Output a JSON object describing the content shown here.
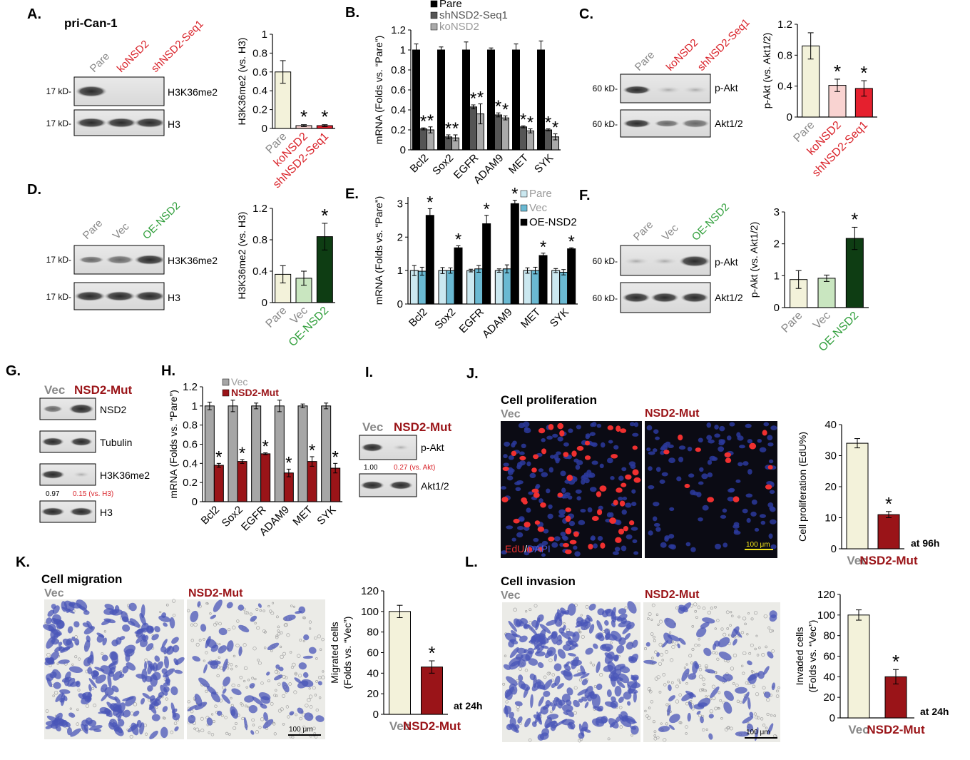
{
  "colors": {
    "pare_fill": "#f3f2da",
    "ko_fill": "#f9d3d1",
    "sh_fill": "#e5202e",
    "vec_fill": "#c9e6c0",
    "oe_fill": "#0e3d13",
    "mut_fill": "#9a1418",
    "red_text": "#d9232a",
    "green_text": "#2f9e3a",
    "gray_text": "#888888",
    "darkred_text": "#9a1418",
    "mrna_pare": "#000000",
    "mrna_sh": "#555555",
    "mrna_ko": "#aaaaaa",
    "mrnaE_pare": "#cbe8f0",
    "mrnaE_vec": "#6ab9d2",
    "mrnaE_oe": "#000000",
    "mrnaH_vec": "#a6a6a6",
    "mrnaH_mut": "#9a1418",
    "edu_bg": "#0b0b14",
    "transwell_bg": "#ebebe7",
    "cell_blue": "#4a55b8"
  },
  "panels": {
    "A": {
      "letter": "A.",
      "subtitle": "pri-Can-1",
      "lanes": [
        "Pare",
        "koNSD2",
        "shNSD2-Seq1"
      ],
      "blots": [
        {
          "mw": "17 kD-",
          "label": "H3K36me2"
        },
        {
          "mw": "17 kD-",
          "label": "H3"
        }
      ]
    },
    "B": {
      "letter": "B."
    },
    "C": {
      "letter": "C.",
      "lanes": [
        "Pare",
        "koNSD2",
        "shNSD2-Seq1"
      ],
      "blots": [
        {
          "mw": "60 kD-",
          "label": "p-Akt"
        },
        {
          "mw": "60 kD-",
          "label": "Akt1/2"
        }
      ]
    },
    "D": {
      "letter": "D.",
      "lanes": [
        "Pare",
        "Vec",
        "OE-NSD2"
      ],
      "blots": [
        {
          "mw": "17 kD-",
          "label": "H3K36me2"
        },
        {
          "mw": "17 kD-",
          "label": "H3"
        }
      ]
    },
    "E": {
      "letter": "E."
    },
    "F": {
      "letter": "F.",
      "lanes": [
        "Pare",
        "Vec",
        "OE-NSD2"
      ],
      "blots": [
        {
          "mw": "60 kD-",
          "label": "p-Akt"
        },
        {
          "mw": "60 kD-",
          "label": "Akt1/2"
        }
      ]
    },
    "G": {
      "letter": "G.",
      "lanes": [
        "Vec",
        "NSD2-Mut"
      ],
      "blots": [
        {
          "label": "NSD2"
        },
        {
          "label": "Tubulin"
        },
        {
          "label": "H3K36me2"
        },
        {
          "label": "H3"
        }
      ],
      "quant_left": "0.97",
      "quant_right": "0.15 (vs. H3)"
    },
    "H": {
      "letter": "H."
    },
    "I": {
      "letter": "I.",
      "lanes": [
        "Vec",
        "NSD2-Mut"
      ],
      "blots": [
        {
          "label": "p-Akt"
        },
        {
          "label": "Akt1/2"
        }
      ],
      "quant_left": "1.00",
      "quant_right": "0.27 (vs. Akt)"
    },
    "J": {
      "letter": "J.",
      "title": "Cell proliferation",
      "left_label": "Vec",
      "right_label": "NSD2-Mut",
      "stain_edu": "EdU",
      "stain_sep": "/",
      "stain_dapi": "DAPI",
      "scale": "100 μm",
      "time": "at 96h"
    },
    "K": {
      "letter": "K.",
      "title": "Cell migration",
      "left_label": "Vec",
      "right_label": "NSD2-Mut",
      "scale": "100 μm",
      "time": "at 24h"
    },
    "L": {
      "letter": "L.",
      "title": "Cell invasion",
      "left_label": "Vec",
      "right_label": "NSD2-Mut",
      "scale": "100 μm",
      "time": "at 24h"
    }
  },
  "chart_data": [
    {
      "id": "A_bar",
      "type": "bar",
      "categories": [
        "Pare",
        "koNSD2",
        "shNSD2-Seq1"
      ],
      "values": [
        0.6,
        0.03,
        0.03
      ],
      "errors": [
        0.12,
        0.01,
        0.01
      ],
      "sig": [
        false,
        true,
        true
      ],
      "ylabel": "H3K36me2 (vs. H3)",
      "ylim": [
        0,
        1
      ],
      "yticks": [
        "0",
        "0.2",
        "0.4",
        "0.6",
        "0.8",
        "1"
      ],
      "tickvals": [
        0,
        0.2,
        0.4,
        0.6,
        0.8,
        1
      ],
      "fills": [
        "#f3f2da",
        "#f9d3d1",
        "#e5202e"
      ],
      "catcolors": [
        "#888888",
        "#d9232a",
        "#d9232a"
      ]
    },
    {
      "id": "B_grouped",
      "type": "bar",
      "categories": [
        "Bcl2",
        "Sox2",
        "EGFR",
        "ADAM9",
        "MET",
        "SYK"
      ],
      "series": [
        {
          "name": "Pare",
          "values": [
            1,
            1,
            1,
            1,
            1,
            1
          ],
          "errors": [
            0.06,
            0.03,
            0.08,
            0.02,
            0.06,
            0.09
          ]
        },
        {
          "name": "shNSD2-Seq1",
          "values": [
            0.21,
            0.13,
            0.43,
            0.35,
            0.23,
            0.2
          ],
          "errors": [
            0.01,
            0.02,
            0.02,
            0.02,
            0.01,
            0.01
          ]
        },
        {
          "name": "koNSD2",
          "values": [
            0.2,
            0.12,
            0.36,
            0.32,
            0.19,
            0.13
          ],
          "errors": [
            0.03,
            0.03,
            0.1,
            0.02,
            0.02,
            0.03
          ]
        }
      ],
      "sig": [
        false,
        true,
        true
      ],
      "ylabel": "mRNA (Folds vs. “Pare”)",
      "ylim": [
        0,
        1.2
      ],
      "yticks": [
        "0",
        "0.2",
        "0.4",
        "0.6",
        "0.8",
        "1",
        "1.2"
      ],
      "tickvals": [
        0,
        0.2,
        0.4,
        0.6,
        0.8,
        1,
        1.2
      ],
      "legend": "top-left"
    },
    {
      "id": "C_bar",
      "type": "bar",
      "categories": [
        "Pare",
        "koNSD2",
        "shNSD2-Seq1"
      ],
      "values": [
        0.92,
        0.41,
        0.37
      ],
      "errors": [
        0.17,
        0.08,
        0.1
      ],
      "sig": [
        false,
        true,
        true
      ],
      "ylabel": "p-Akt (vs. Akt1/2)",
      "ylim": [
        0,
        1.2
      ],
      "yticks": [
        "0",
        "0.4",
        "0.8",
        "1.2"
      ],
      "tickvals": [
        0,
        0.4,
        0.8,
        1.2
      ],
      "fills": [
        "#f3f2da",
        "#f9d3d1",
        "#e5202e"
      ],
      "catcolors": [
        "#888888",
        "#d9232a",
        "#d9232a"
      ]
    },
    {
      "id": "D_bar",
      "type": "bar",
      "categories": [
        "Pare",
        "Vec",
        "OE-NSD2"
      ],
      "values": [
        0.36,
        0.31,
        0.84
      ],
      "errors": [
        0.11,
        0.09,
        0.17
      ],
      "sig": [
        false,
        false,
        true
      ],
      "ylabel": "H3K36me2 (vs. H3)",
      "ylim": [
        0,
        1.2
      ],
      "yticks": [
        "0",
        "0.4",
        "0.8",
        "1.2"
      ],
      "tickvals": [
        0,
        0.4,
        0.8,
        1.2
      ],
      "fills": [
        "#f3f2da",
        "#c9e6c0",
        "#0e3d13"
      ],
      "catcolors": [
        "#888888",
        "#888888",
        "#2f9e3a"
      ]
    },
    {
      "id": "E_grouped",
      "type": "bar",
      "categories": [
        "Bcl2",
        "Sox2",
        "EGFR",
        "ADAM9",
        "MET",
        "SYK"
      ],
      "series": [
        {
          "name": "Pare",
          "values": [
            1,
            1,
            1,
            1,
            1,
            1
          ],
          "errors": [
            0.15,
            0.09,
            0.04,
            0.05,
            0.08,
            0.06
          ]
        },
        {
          "name": "Vec",
          "values": [
            0.98,
            1.0,
            1.05,
            1.05,
            1.0,
            0.95
          ],
          "errors": [
            0.12,
            0.08,
            0.1,
            0.12,
            0.1,
            0.08
          ]
        },
        {
          "name": "OE-NSD2",
          "values": [
            2.65,
            1.68,
            2.4,
            3.0,
            1.45,
            1.65
          ],
          "errors": [
            0.2,
            0.06,
            0.25,
            0.1,
            0.07,
            0.03
          ]
        }
      ],
      "sig": [
        false,
        false,
        true
      ],
      "ylabel": "mRNA (Folds vs. “Pare”)",
      "ylim": [
        0,
        3.2
      ],
      "yticks": [
        "0",
        "1",
        "2",
        "3"
      ],
      "tickvals": [
        0,
        1,
        2,
        3
      ],
      "legend": "top-right"
    },
    {
      "id": "F_bar",
      "type": "bar",
      "categories": [
        "Pare",
        "Vec",
        "OE-NSD2"
      ],
      "values": [
        0.88,
        0.92,
        2.17
      ],
      "errors": [
        0.28,
        0.1,
        0.35
      ],
      "sig": [
        false,
        false,
        true
      ],
      "ylabel": "p-Akt (vs. Akt1/2)",
      "ylim": [
        0,
        3
      ],
      "yticks": [
        "0",
        "1",
        "2",
        "3"
      ],
      "tickvals": [
        0,
        1,
        2,
        3
      ],
      "fills": [
        "#f3f2da",
        "#c9e6c0",
        "#0e3d13"
      ],
      "catcolors": [
        "#888888",
        "#888888",
        "#2f9e3a"
      ]
    },
    {
      "id": "H_grouped",
      "type": "bar",
      "categories": [
        "Bcl2",
        "Sox2",
        "EGFR",
        "ADAM9",
        "MET",
        "SYK"
      ],
      "series": [
        {
          "name": "Vec",
          "values": [
            1,
            1,
            1,
            1,
            1,
            1
          ],
          "errors": [
            0.04,
            0.06,
            0.03,
            0.06,
            0.02,
            0.03
          ]
        },
        {
          "name": "NSD2-Mut",
          "values": [
            0.38,
            0.42,
            0.5,
            0.3,
            0.42,
            0.35
          ],
          "errors": [
            0.02,
            0.02,
            0.01,
            0.04,
            0.05,
            0.05
          ]
        }
      ],
      "sig": [
        false,
        true
      ],
      "ylabel": "mRNA (Folds vs. “Pare”)",
      "ylim": [
        0,
        1.2
      ],
      "yticks": [
        "0",
        "0.2",
        "0.4",
        "0.6",
        "0.8",
        "1",
        "1.2"
      ],
      "tickvals": [
        0,
        0.2,
        0.4,
        0.6,
        0.8,
        1,
        1.2
      ],
      "legend": "top-left"
    },
    {
      "id": "J_bar",
      "type": "bar",
      "categories": [
        "Vec",
        "NSD2-Mut"
      ],
      "values": [
        34,
        11
      ],
      "errors": [
        1.5,
        1.0
      ],
      "sig": [
        false,
        true
      ],
      "ylabel": "Cell proliferation (EdU%)",
      "ylim": [
        0,
        40
      ],
      "yticks": [
        "0",
        "10",
        "20",
        "30",
        "40"
      ],
      "tickvals": [
        0,
        10,
        20,
        30,
        40
      ],
      "fills": [
        "#f3f2da",
        "#9a1418"
      ],
      "catcolors": [
        "#888888",
        "#9a1418"
      ]
    },
    {
      "id": "K_bar",
      "type": "bar",
      "categories": [
        "Vec",
        "NSD2-Mut"
      ],
      "values": [
        100,
        46
      ],
      "errors": [
        6,
        6
      ],
      "sig": [
        false,
        true
      ],
      "ylabel": "Migrated cells",
      "ylabel2": "(Folds vs. “Vec”)",
      "ylim": [
        0,
        120
      ],
      "yticks": [
        "0",
        "20",
        "40",
        "60",
        "80",
        "100",
        "120"
      ],
      "tickvals": [
        0,
        20,
        40,
        60,
        80,
        100,
        120
      ],
      "fills": [
        "#f3f2da",
        "#9a1418"
      ],
      "catcolors": [
        "#888888",
        "#9a1418"
      ]
    },
    {
      "id": "L_bar",
      "type": "bar",
      "categories": [
        "Vec",
        "NSD2-Mut"
      ],
      "values": [
        100,
        40
      ],
      "errors": [
        5,
        7
      ],
      "sig": [
        false,
        true
      ],
      "ylabel": "Invaded cells",
      "ylabel2": "(Folds vs. “Vec”)",
      "ylim": [
        0,
        120
      ],
      "yticks": [
        "0",
        "20",
        "40",
        "60",
        "80",
        "100",
        "120"
      ],
      "tickvals": [
        0,
        20,
        40,
        60,
        80,
        100,
        120
      ],
      "fills": [
        "#f3f2da",
        "#9a1418"
      ],
      "catcolors": [
        "#888888",
        "#9a1418"
      ]
    }
  ]
}
